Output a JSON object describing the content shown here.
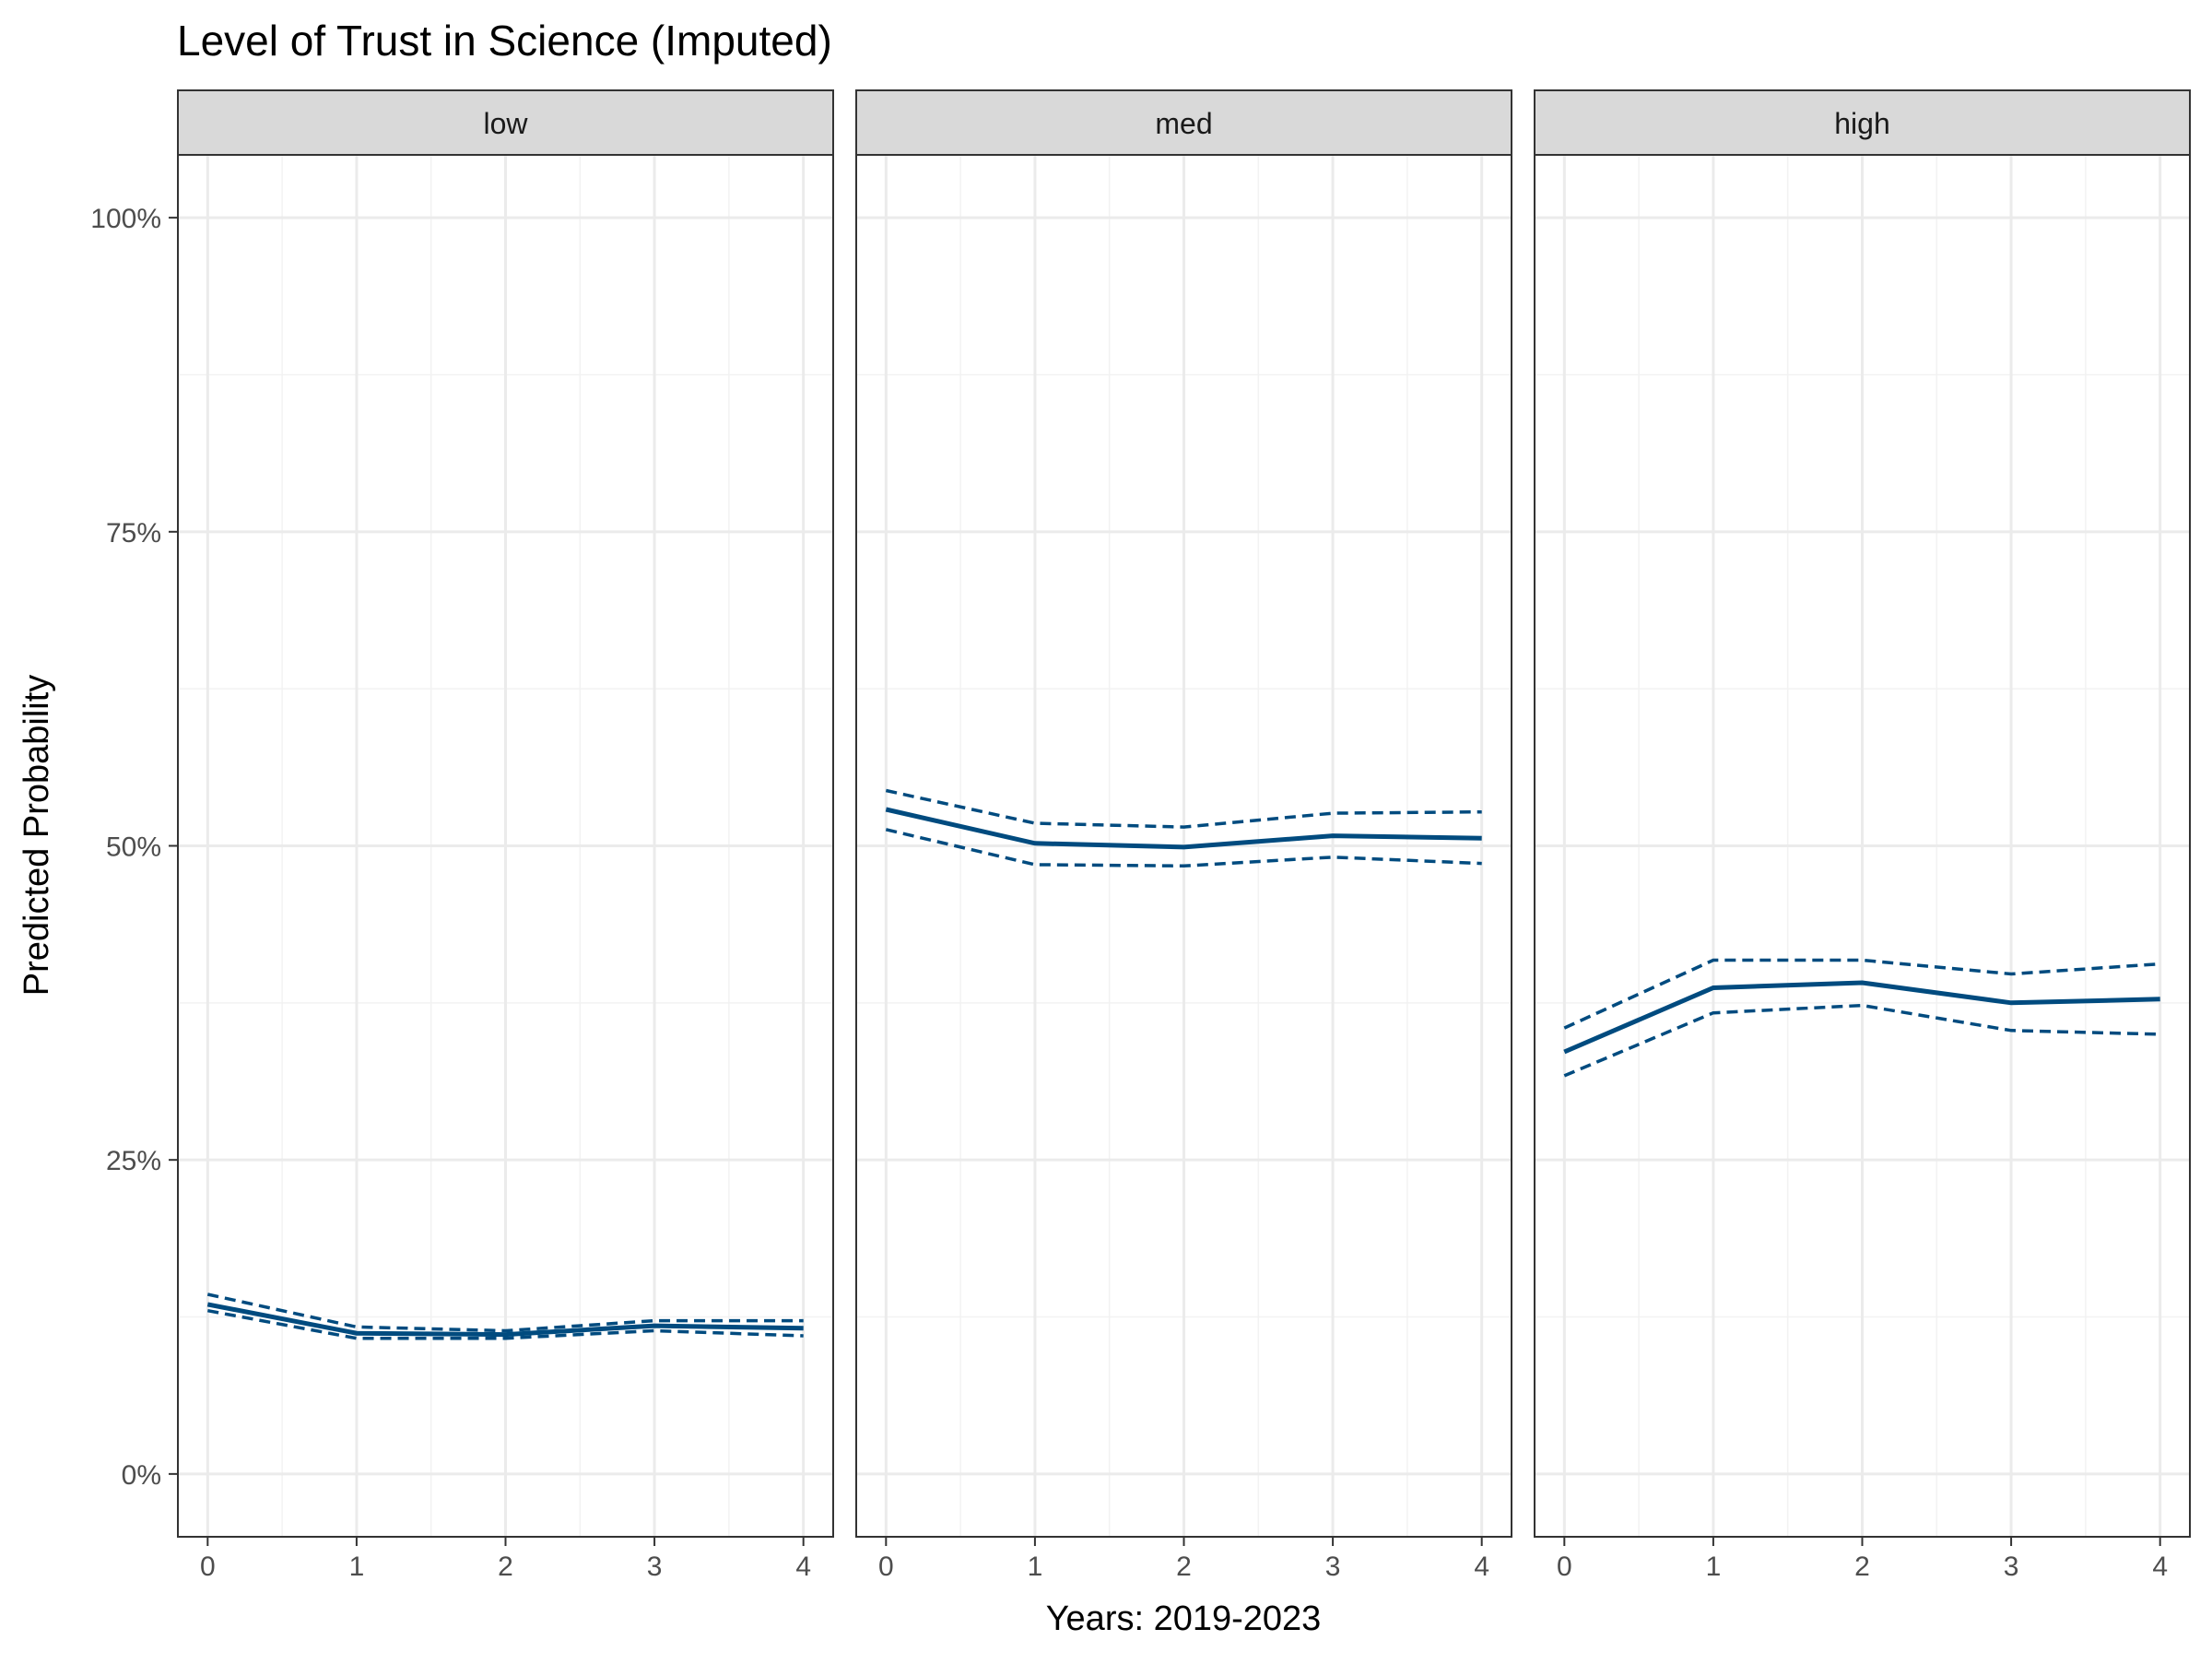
{
  "chart_data": {
    "type": "line",
    "title": "Level of Trust in Science (Imputed)",
    "xlabel": "Years: 2019-2023",
    "ylabel": "Predicted Probability",
    "x": [
      0,
      1,
      2,
      3,
      4
    ],
    "x_ticks": [
      "0",
      "1",
      "2",
      "3",
      "4"
    ],
    "xlim": [
      -0.2,
      4.2
    ],
    "ylim": [
      -0.05,
      1.05
    ],
    "y_ticks": [
      0,
      0.25,
      0.5,
      0.75,
      1.0
    ],
    "y_tick_labels": [
      "0%",
      "25%",
      "50%",
      "75%",
      "100%"
    ],
    "grid": true,
    "legend": "none",
    "line_color": "#004B7F",
    "strip_fill": "#D9D9D9",
    "panels": [
      {
        "label": "low",
        "estimate": [
          0.135,
          0.112,
          0.111,
          0.118,
          0.116
        ],
        "upper": [
          0.143,
          0.117,
          0.114,
          0.122,
          0.122
        ],
        "lower": [
          0.13,
          0.108,
          0.108,
          0.114,
          0.11
        ]
      },
      {
        "label": "med",
        "estimate": [
          0.529,
          0.502,
          0.499,
          0.508,
          0.506
        ],
        "upper": [
          0.544,
          0.518,
          0.515,
          0.526,
          0.527
        ],
        "lower": [
          0.513,
          0.485,
          0.484,
          0.491,
          0.486
        ]
      },
      {
        "label": "high",
        "estimate": [
          0.336,
          0.387,
          0.391,
          0.375,
          0.378
        ],
        "upper": [
          0.355,
          0.409,
          0.409,
          0.398,
          0.406
        ],
        "lower": [
          0.317,
          0.367,
          0.373,
          0.353,
          0.35
        ]
      }
    ]
  }
}
